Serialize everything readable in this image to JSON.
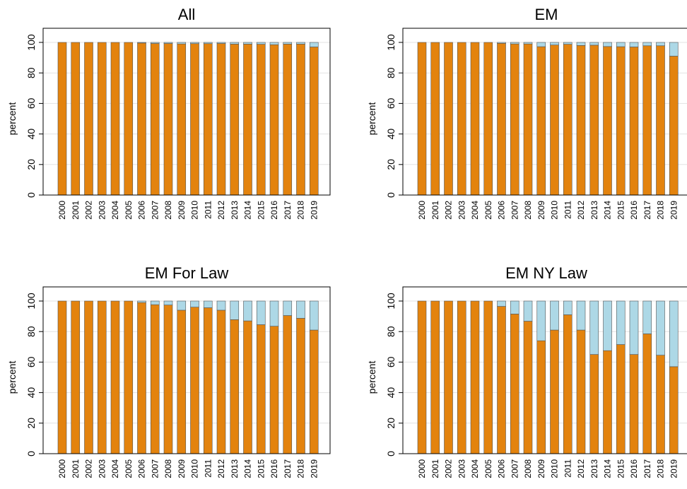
{
  "colors": {
    "orange": "#e3830e",
    "blue": "#add8e6",
    "grid": "#e3e3e3",
    "frame": "#000000"
  },
  "chart_data": [
    {
      "type": "bar",
      "stacked": true,
      "title": "All",
      "ylabel": "percent",
      "ylim": [
        0,
        100
      ],
      "yticks": [
        0,
        20,
        40,
        60,
        80,
        100
      ],
      "categories": [
        "2000",
        "2001",
        "2002",
        "2003",
        "2004",
        "2005",
        "2006",
        "2007",
        "2008",
        "2009",
        "2010",
        "2011",
        "2012",
        "2013",
        "2014",
        "2015",
        "2016",
        "2017",
        "2018",
        "2019"
      ],
      "series": [
        {
          "color": "orange",
          "values": [
            100,
            100,
            100,
            100,
            100,
            100,
            99.6,
            99.3,
            99.3,
            99,
            99.2,
            99.2,
            99.3,
            98.9,
            98.9,
            98.8,
            98.5,
            98.9,
            98.9,
            97
          ]
        },
        {
          "color": "blue",
          "values": [
            0,
            0,
            0,
            0,
            0,
            0,
            0.4,
            0.7,
            0.7,
            1,
            0.8,
            0.8,
            0.7,
            1.1,
            1.1,
            1.2,
            1.5,
            1.1,
            1.1,
            3
          ]
        }
      ]
    },
    {
      "type": "bar",
      "stacked": true,
      "title": "EM",
      "ylabel": "percent",
      "ylim": [
        0,
        100
      ],
      "yticks": [
        0,
        20,
        40,
        60,
        80,
        100
      ],
      "categories": [
        "2000",
        "2001",
        "2002",
        "2003",
        "2004",
        "2005",
        "2006",
        "2007",
        "2008",
        "2009",
        "2010",
        "2011",
        "2012",
        "2013",
        "2014",
        "2015",
        "2016",
        "2017",
        "2018",
        "2019"
      ],
      "series": [
        {
          "color": "orange",
          "values": [
            100,
            100,
            100,
            100,
            100,
            100,
            99.4,
            99,
            99,
            97.2,
            98.3,
            98.8,
            98,
            98.2,
            97.3,
            97.2,
            97,
            97.8,
            97.8,
            91
          ]
        },
        {
          "color": "blue",
          "values": [
            0,
            0,
            0,
            0,
            0,
            0,
            0.6,
            1,
            1,
            2.8,
            1.7,
            1.2,
            2,
            1.8,
            2.7,
            2.8,
            3,
            2.2,
            2.2,
            9
          ]
        }
      ]
    },
    {
      "type": "bar",
      "stacked": true,
      "title": "EM For Law",
      "ylabel": "percent",
      "ylim": [
        0,
        100
      ],
      "yticks": [
        0,
        20,
        40,
        60,
        80,
        100
      ],
      "categories": [
        "2000",
        "2001",
        "2002",
        "2003",
        "2004",
        "2005",
        "2006",
        "2007",
        "2008",
        "2009",
        "2010",
        "2011",
        "2012",
        "2013",
        "2014",
        "2015",
        "2016",
        "2017",
        "2018",
        "2019"
      ],
      "series": [
        {
          "color": "orange",
          "values": [
            100,
            100,
            100,
            100,
            100,
            100,
            99,
            97.6,
            97.4,
            94,
            96,
            95.6,
            94,
            87.8,
            87,
            84.5,
            83.5,
            90.5,
            88.7,
            81
          ]
        },
        {
          "color": "blue",
          "values": [
            0,
            0,
            0,
            0,
            0,
            0,
            1,
            2.4,
            2.6,
            6,
            4,
            4.4,
            6,
            12.2,
            13,
            15.5,
            16.5,
            9.5,
            11.3,
            19
          ]
        }
      ]
    },
    {
      "type": "bar",
      "stacked": true,
      "title": "EM NY Law",
      "ylabel": "percent",
      "ylim": [
        0,
        100
      ],
      "yticks": [
        0,
        20,
        40,
        60,
        80,
        100
      ],
      "categories": [
        "2000",
        "2001",
        "2002",
        "2003",
        "2004",
        "2005",
        "2006",
        "2007",
        "2008",
        "2009",
        "2010",
        "2011",
        "2012",
        "2013",
        "2014",
        "2015",
        "2016",
        "2017",
        "2018",
        "2019"
      ],
      "series": [
        {
          "color": "orange",
          "values": [
            100,
            100,
            100,
            100,
            100,
            100,
            96.5,
            91.5,
            86.8,
            74,
            81,
            91,
            81,
            65,
            67.5,
            71.5,
            65,
            78.5,
            64.5,
            57
          ]
        },
        {
          "color": "blue",
          "values": [
            0,
            0,
            0,
            0,
            0,
            0,
            3.5,
            8.5,
            13.2,
            26,
            19,
            9,
            19,
            35,
            32.5,
            28.5,
            35,
            21.5,
            35.5,
            43
          ]
        }
      ]
    }
  ]
}
